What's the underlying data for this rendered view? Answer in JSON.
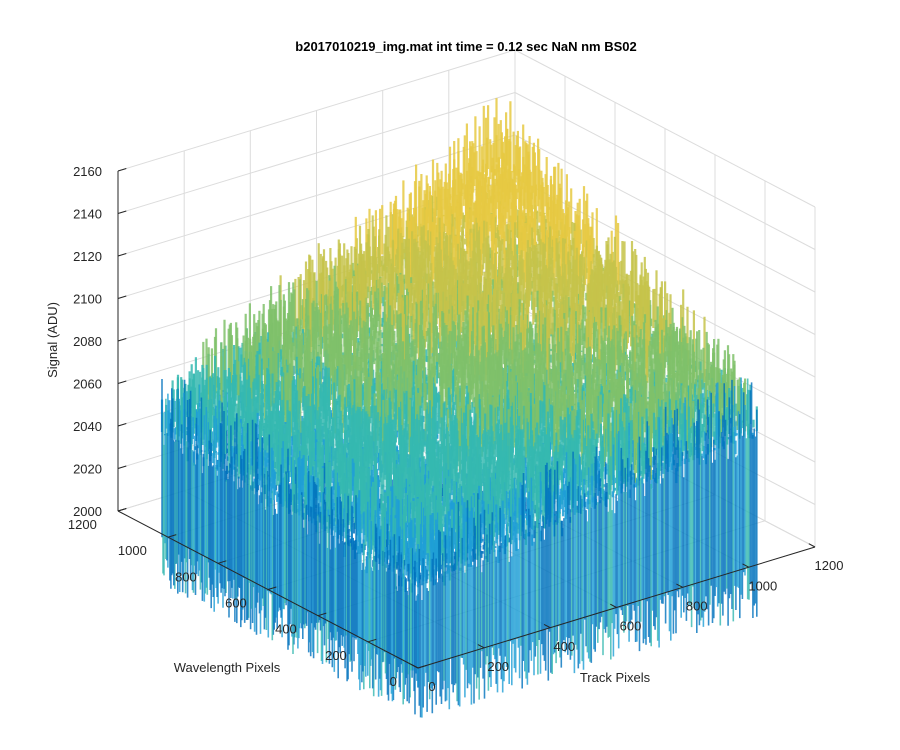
{
  "chart_data": {
    "type": "surface",
    "title": "b2017010219_img.mat int time = 0.12 sec  NaN nm BS02",
    "xlabel": "Track Pixels",
    "ylabel": "Wavelength Pixels",
    "zlabel": "Signal (ADU)",
    "xlim": [
      0,
      1200
    ],
    "ylim": [
      0,
      1200
    ],
    "zlim": [
      2000,
      2160
    ],
    "x_ticks": [
      "0",
      "200",
      "400",
      "600",
      "800",
      "1000",
      "1200"
    ],
    "y_ticks": [
      "0",
      "200",
      "400",
      "600",
      "800",
      "1000",
      "1200"
    ],
    "z_ticks": [
      "2000",
      "2020",
      "2040",
      "2060",
      "2080",
      "2100",
      "2120",
      "2140",
      "2160"
    ],
    "data_extent": {
      "x": [
        0,
        1024
      ],
      "y": [
        0,
        1024
      ]
    },
    "surface_summary": {
      "baseline_signal_near_origin": 2050,
      "peak_signal_far_corner": 2150,
      "noise_amplitude": 20
    },
    "colormap": [
      "#0072bd",
      "#1f9fd6",
      "#35b8b0",
      "#7fc16a",
      "#c6c34a",
      "#e6c942"
    ],
    "grid": true
  }
}
